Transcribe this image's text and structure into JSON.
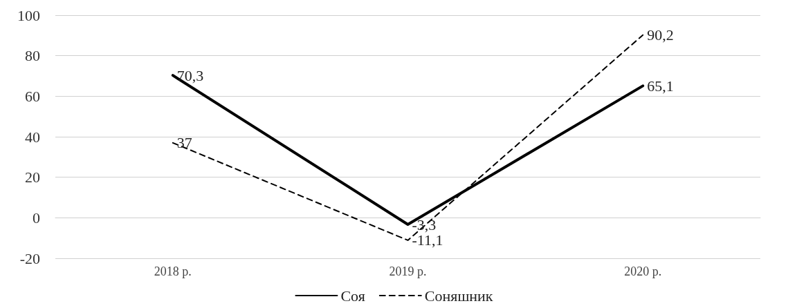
{
  "chart_data": {
    "type": "line",
    "categories": [
      "2018 р.",
      "2019 р.",
      "2020 р."
    ],
    "series": [
      {
        "name": "Соя",
        "color": "#000000",
        "line_style": "solid",
        "values": [
          70.3,
          -3.3,
          65.1
        ],
        "value_labels": [
          "70,3",
          "-3,3",
          "65,1"
        ]
      },
      {
        "name": "Соняшник",
        "color": "#000000",
        "line_style": "dashed",
        "values": [
          37,
          -11.1,
          90.2
        ],
        "value_labels": [
          "37",
          "-11,1",
          "90,2"
        ]
      }
    ],
    "ylim": [
      -20,
      100
    ],
    "yticks": [
      -20,
      0,
      20,
      40,
      60,
      80,
      100
    ],
    "grid": "y",
    "legend": "bottom",
    "marker": "none"
  }
}
